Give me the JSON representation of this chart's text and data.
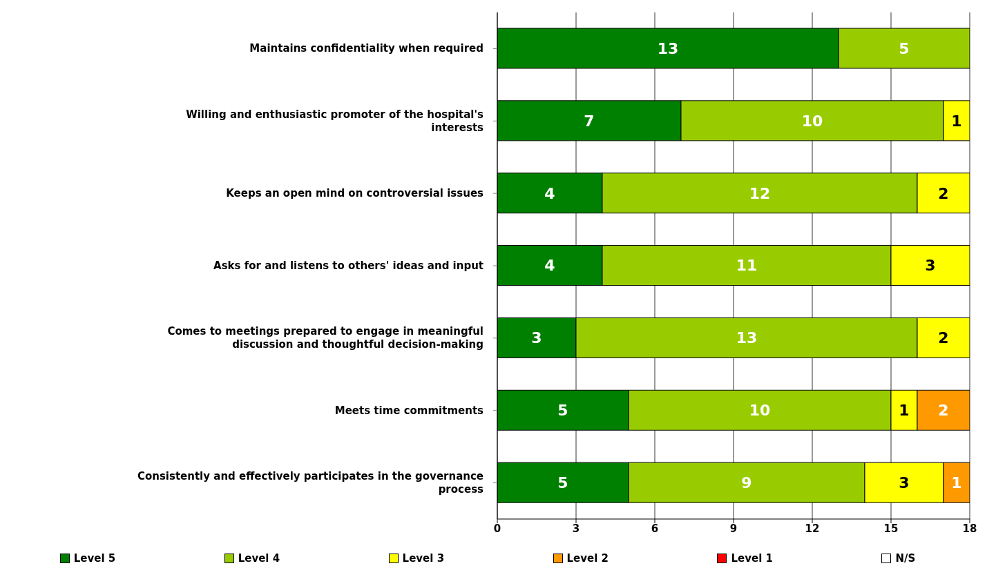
{
  "chart_data": {
    "type": "bar",
    "orientation": "horizontal",
    "stacked": true,
    "categories": [
      "Maintains confidentiality when required",
      "Willing and enthusiastic promoter of the hospital's interests",
      "Keeps an open mind on controversial issues",
      "Asks for and listens to others' ideas and input",
      "Comes to meetings prepared to engage in meaningful discussion and thoughtful decision-making",
      "Meets time commitments",
      "Consistently and effectively participates in the governance process"
    ],
    "series": [
      {
        "name": "Level 5",
        "color": "#008000",
        "values": [
          13,
          7,
          4,
          4,
          3,
          5,
          5
        ]
      },
      {
        "name": "Level 4",
        "color": "#99cc00",
        "values": [
          5,
          10,
          12,
          11,
          13,
          10,
          9
        ]
      },
      {
        "name": "Level 3",
        "color": "#ffff00",
        "values": [
          null,
          1,
          2,
          3,
          2,
          1,
          3
        ]
      },
      {
        "name": "Level 2",
        "color": "#ff9900",
        "values": [
          null,
          null,
          null,
          null,
          null,
          2,
          1
        ]
      },
      {
        "name": "Level 1",
        "color": "#ff0000",
        "values": [
          null,
          null,
          null,
          null,
          null,
          null,
          null
        ]
      },
      {
        "name": "N/S",
        "color": "#ffffff",
        "values": [
          null,
          null,
          null,
          null,
          null,
          null,
          null
        ]
      }
    ],
    "xlim": [
      0,
      18
    ],
    "xticks": [
      0,
      3,
      6,
      9,
      12,
      15,
      18
    ],
    "grid": "x",
    "data_labels": true,
    "legend": "bottom"
  }
}
